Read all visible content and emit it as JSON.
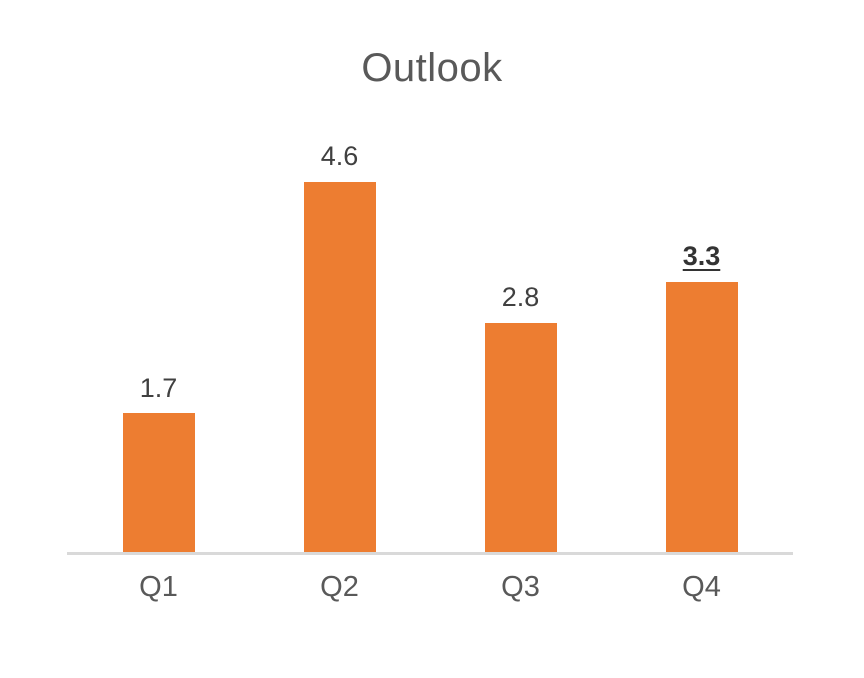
{
  "chart_data": {
    "type": "bar",
    "title": "Outlook",
    "categories": [
      "Q1",
      "Q2",
      "Q3",
      "Q4"
    ],
    "values": [
      1.7,
      4.6,
      2.8,
      3.3
    ],
    "data_labels": [
      "1.7",
      "4.6",
      "2.8",
      "3.3"
    ],
    "emphasized_labels": [
      false,
      false,
      false,
      true
    ],
    "xlabel": "",
    "ylabel": "",
    "ylim": [
      0,
      5
    ],
    "grid": false,
    "legend": false,
    "data_labels_position": "above-bar"
  },
  "colors": {
    "bar": "#ED7D31",
    "title": "#595959",
    "data_label": "#404040",
    "emphasized_label": "#333333",
    "axis_line": "#D9D9D9",
    "category_label": "#595959",
    "background": "#FFFFFF"
  }
}
